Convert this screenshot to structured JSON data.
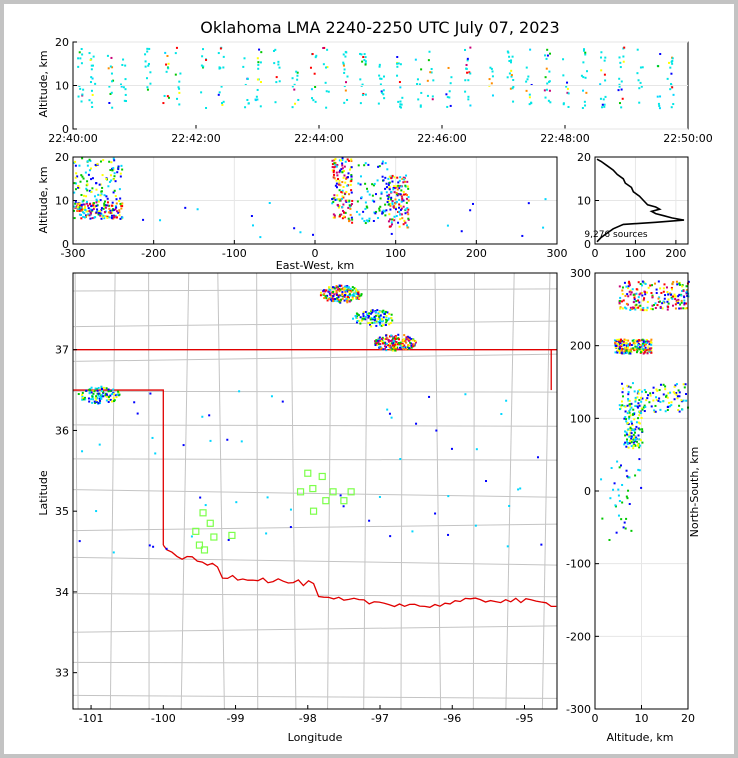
{
  "title": "Oklahoma LMA 2240-2250 UTC July 07, 2023",
  "colors": {
    "state_line": "#e00000",
    "county_line": "#c4c4c4",
    "station": "#7cff4a",
    "profile": "#000000",
    "frame_bg": "#c3c3c3"
  },
  "chart_data": [
    {
      "id": "time-height",
      "type": "scatter",
      "xlabel": "",
      "ylabel": "Altitude, km",
      "x_ticks": [
        "22:40:00",
        "22:42:00",
        "22:44:00",
        "22:46:00",
        "22:48:00",
        "22:50:00"
      ],
      "xlim_minutes": [
        0,
        10
      ],
      "ylim": [
        0,
        20
      ],
      "y_ticks": [
        0,
        10,
        20
      ],
      "source_columns_minutes": [
        0.1,
        0.3,
        0.6,
        0.8,
        1.2,
        1.5,
        1.7,
        2.1,
        2.4,
        2.8,
        3.0,
        3.3,
        3.6,
        3.9,
        4.1,
        4.4,
        4.7,
        5.0,
        5.3,
        5.6,
        5.8,
        6.1,
        6.4,
        6.8,
        7.1,
        7.4,
        7.7,
        8.0,
        8.3,
        8.6,
        8.9,
        9.2,
        9.5,
        9.7
      ]
    },
    {
      "id": "east-west-altitude",
      "type": "heatmap",
      "xlabel": "East-West, km",
      "ylabel": "Altitude, km",
      "xlim": [
        -300,
        300
      ],
      "ylim": [
        0,
        20
      ],
      "x_ticks": [
        -300,
        -200,
        -100,
        0,
        100,
        200,
        300
      ],
      "y_ticks": [
        0,
        10,
        20
      ],
      "clusters": [
        {
          "x": [
            -300,
            -240
          ],
          "alt": [
            6,
            20
          ],
          "density": "medium"
        },
        {
          "x": [
            -300,
            -240
          ],
          "alt": [
            6,
            10
          ],
          "density": "high"
        },
        {
          "x": [
            20,
            45
          ],
          "alt": [
            5,
            20
          ],
          "density": "high"
        },
        {
          "x": [
            90,
            115
          ],
          "alt": [
            4,
            16
          ],
          "density": "high"
        },
        {
          "x": [
            50,
            90
          ],
          "alt": [
            5,
            20
          ],
          "density": "low"
        }
      ]
    },
    {
      "id": "altitude-histogram",
      "type": "line",
      "xlim": [
        0,
        230
      ],
      "ylim": [
        0,
        20
      ],
      "x_ticks": [
        0,
        100,
        200
      ],
      "y_ticks": [
        0,
        10,
        20
      ],
      "annotation": "9,276 sources",
      "profile": [
        {
          "alt": 0.5,
          "count": 5
        },
        {
          "alt": 1.5,
          "count": 15
        },
        {
          "alt": 2.5,
          "count": 30
        },
        {
          "alt": 3.5,
          "count": 45
        },
        {
          "alt": 4.5,
          "count": 70
        },
        {
          "alt": 5.0,
          "count": 150
        },
        {
          "alt": 5.5,
          "count": 220
        },
        {
          "alt": 6.0,
          "count": 190
        },
        {
          "alt": 6.5,
          "count": 170
        },
        {
          "alt": 7.0,
          "count": 150
        },
        {
          "alt": 7.5,
          "count": 140
        },
        {
          "alt": 8.0,
          "count": 160
        },
        {
          "alt": 8.5,
          "count": 150
        },
        {
          "alt": 9.0,
          "count": 130
        },
        {
          "alt": 10.0,
          "count": 120
        },
        {
          "alt": 11.0,
          "count": 110
        },
        {
          "alt": 12.0,
          "count": 95
        },
        {
          "alt": 13.0,
          "count": 90
        },
        {
          "alt": 14.0,
          "count": 75
        },
        {
          "alt": 15.0,
          "count": 70
        },
        {
          "alt": 16.0,
          "count": 55
        },
        {
          "alt": 17.0,
          "count": 45
        },
        {
          "alt": 18.0,
          "count": 30
        },
        {
          "alt": 19.0,
          "count": 15
        },
        {
          "alt": 19.5,
          "count": 5
        }
      ]
    },
    {
      "id": "plan-view",
      "type": "scatter",
      "xlabel": "Longitude",
      "ylabel": "Latitude",
      "xlim": [
        -101.25,
        -94.55
      ],
      "ylim": [
        32.55,
        37.95
      ],
      "x_ticks": [
        -101,
        -100,
        -99,
        -98,
        -97,
        -96,
        -95
      ],
      "y_ticks": [
        33,
        34,
        35,
        36,
        37
      ],
      "storm_cells": [
        {
          "lon": -97.55,
          "lat": 37.7,
          "density": "high"
        },
        {
          "lon": -97.1,
          "lat": 37.4,
          "density": "medium"
        },
        {
          "lon": -96.8,
          "lat": 37.1,
          "density": "high"
        },
        {
          "lon": -100.9,
          "lat": 36.45,
          "density": "medium"
        }
      ],
      "stations": [
        [
          -98.0,
          35.47
        ],
        [
          -97.8,
          35.43
        ],
        [
          -97.93,
          35.28
        ],
        [
          -98.1,
          35.24
        ],
        [
          -97.65,
          35.24
        ],
        [
          -97.4,
          35.24
        ],
        [
          -97.75,
          35.13
        ],
        [
          -97.5,
          35.13
        ],
        [
          -97.92,
          35.0
        ],
        [
          -99.45,
          34.98
        ],
        [
          -99.35,
          34.85
        ],
        [
          -99.55,
          34.75
        ],
        [
          -99.3,
          34.68
        ],
        [
          -99.05,
          34.7
        ],
        [
          -99.5,
          34.58
        ],
        [
          -99.43,
          34.52
        ]
      ]
    },
    {
      "id": "altitude-north-south",
      "type": "scatter",
      "xlabel": "Altitude, km",
      "ylabel": "North-South, km",
      "xlim": [
        0,
        20
      ],
      "ylim": [
        -300,
        300
      ],
      "x_ticks": [
        0,
        10,
        20
      ],
      "y_ticks": [
        -300,
        -200,
        -100,
        0,
        100,
        200,
        300
      ],
      "clusters": [
        {
          "ns": [
            250,
            290
          ],
          "alt": [
            5,
            20
          ],
          "density": "high"
        },
        {
          "ns": [
            190,
            210
          ],
          "alt": [
            4,
            12
          ],
          "density": "high"
        },
        {
          "ns": [
            110,
            150
          ],
          "alt": [
            5,
            20
          ],
          "density": "medium"
        },
        {
          "ns": [
            60,
            120
          ],
          "alt": [
            6,
            10
          ],
          "density": "medium"
        }
      ]
    }
  ]
}
